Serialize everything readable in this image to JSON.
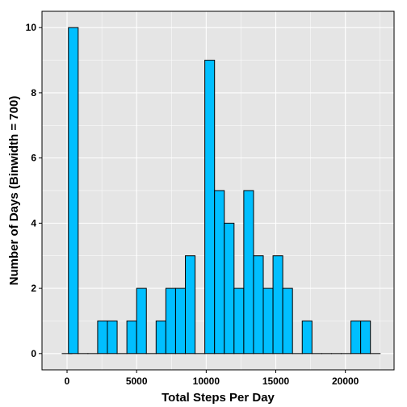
{
  "chart_data": {
    "type": "bar",
    "title": "",
    "xlabel": "Total Steps Per Day",
    "ylabel": "Number of Days (Binwidth = 700)",
    "binwidth": 700,
    "bins": [
      {
        "center": 0,
        "count": 0
      },
      {
        "center": 450,
        "count": 10
      },
      {
        "center": 1150,
        "count": 0
      },
      {
        "center": 1850,
        "count": 0
      },
      {
        "center": 2550,
        "count": 1
      },
      {
        "center": 3250,
        "count": 1
      },
      {
        "center": 3950,
        "count": 0
      },
      {
        "center": 4650,
        "count": 1
      },
      {
        "center": 5350,
        "count": 2
      },
      {
        "center": 6050,
        "count": 0
      },
      {
        "center": 6750,
        "count": 1
      },
      {
        "center": 7450,
        "count": 2
      },
      {
        "center": 8150,
        "count": 2
      },
      {
        "center": 8850,
        "count": 3
      },
      {
        "center": 9550,
        "count": 0
      },
      {
        "center": 10250,
        "count": 9
      },
      {
        "center": 10950,
        "count": 5
      },
      {
        "center": 11650,
        "count": 4
      },
      {
        "center": 12350,
        "count": 2
      },
      {
        "center": 13050,
        "count": 5
      },
      {
        "center": 13750,
        "count": 3
      },
      {
        "center": 14450,
        "count": 2
      },
      {
        "center": 15150,
        "count": 3
      },
      {
        "center": 15850,
        "count": 2
      },
      {
        "center": 16550,
        "count": 0
      },
      {
        "center": 17250,
        "count": 1
      },
      {
        "center": 17950,
        "count": 0
      },
      {
        "center": 18650,
        "count": 0
      },
      {
        "center": 19350,
        "count": 0
      },
      {
        "center": 20050,
        "count": 0
      },
      {
        "center": 20750,
        "count": 1
      },
      {
        "center": 21450,
        "count": 1
      },
      {
        "center": 22150,
        "count": 0
      }
    ],
    "xlim": [
      -1800,
      23500
    ],
    "ylim": [
      -0.5,
      10.5
    ],
    "x_ticks": [
      0,
      5000,
      10000,
      15000,
      20000
    ],
    "x_tick_labels": [
      "0",
      "5000",
      "10000",
      "15000",
      "20000"
    ],
    "y_ticks": [
      0,
      2,
      4,
      6,
      8,
      10
    ],
    "y_tick_labels": [
      "0",
      "2",
      "4",
      "6",
      "8",
      "10"
    ],
    "grid": true,
    "legend": "none",
    "colors": {
      "bar_fill": "#00BFFF",
      "bar_stroke": "#000000",
      "panel_background": "#E5E5E5",
      "grid": "#FFFFFF"
    }
  }
}
